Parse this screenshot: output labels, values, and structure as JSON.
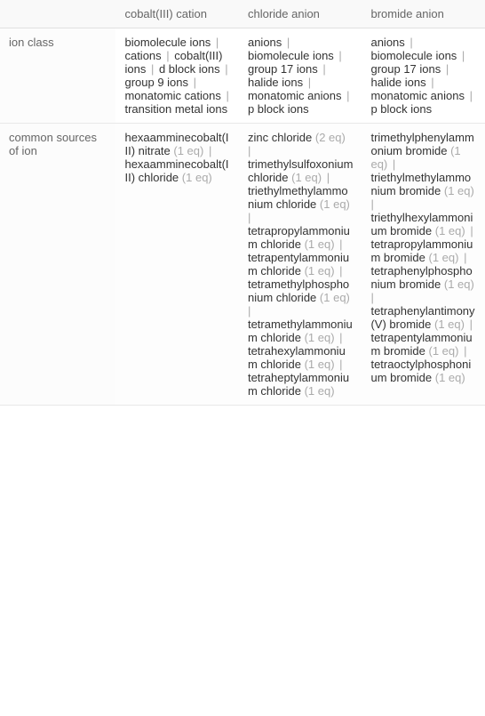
{
  "columns": [
    "",
    "cobalt(III) cation",
    "chloride anion",
    "bromide anion"
  ],
  "rows": [
    {
      "label": "ion class",
      "cells": [
        [
          {
            "t": "biomolecule ions"
          },
          {
            "t": "cations"
          },
          {
            "t": "cobalt(III) ions"
          },
          {
            "t": "d block ions"
          },
          {
            "t": "group 9 ions"
          },
          {
            "t": "monatomic cations"
          },
          {
            "t": "transition metal ions"
          }
        ],
        [
          {
            "t": "anions"
          },
          {
            "t": "biomolecule ions"
          },
          {
            "t": "group 17 ions"
          },
          {
            "t": "halide ions"
          },
          {
            "t": "monatomic anions"
          },
          {
            "t": "p block ions"
          }
        ],
        [
          {
            "t": "anions"
          },
          {
            "t": "biomolecule ions"
          },
          {
            "t": "group 17 ions"
          },
          {
            "t": "halide ions"
          },
          {
            "t": "monatomic anions"
          },
          {
            "t": "p block ions"
          }
        ]
      ]
    },
    {
      "label": "common sources of ion",
      "cells": [
        [
          {
            "t": "hexaamminecobalt(III) nitrate",
            "q": "(1 eq)"
          },
          {
            "t": "hexaamminecobalt(III) chloride",
            "q": "(1 eq)"
          }
        ],
        [
          {
            "t": "zinc chloride",
            "q": "(2 eq)"
          },
          {
            "t": "trimethylsulfoxonium chloride",
            "q": "(1 eq)"
          },
          {
            "t": "triethylmethylammonium chloride",
            "q": "(1 eq)"
          },
          {
            "t": "tetrapropylammonium chloride",
            "q": "(1 eq)"
          },
          {
            "t": "tetrapentylammonium chloride",
            "q": "(1 eq)"
          },
          {
            "t": "tetramethylphosphonium chloride",
            "q": "(1 eq)"
          },
          {
            "t": "tetramethylammonium chloride",
            "q": "(1 eq)"
          },
          {
            "t": "tetrahexylammonium chloride",
            "q": "(1 eq)"
          },
          {
            "t": "tetraheptylammonium chloride",
            "q": "(1 eq)"
          }
        ],
        [
          {
            "t": "trimethylphenylammonium bromide",
            "q": "(1 eq)"
          },
          {
            "t": "triethylmethylammonium bromide",
            "q": "(1 eq)"
          },
          {
            "t": "triethylhexylammonium bromide",
            "q": "(1 eq)"
          },
          {
            "t": "tetrapropylammonium bromide",
            "q": "(1 eq)"
          },
          {
            "t": "tetraphenylphosphonium bromide",
            "q": "(1 eq)"
          },
          {
            "t": "tetraphenylantimony(V) bromide",
            "q": "(1 eq)"
          },
          {
            "t": "tetrapentylammonium bromide",
            "q": "(1 eq)"
          },
          {
            "t": "tetraoctylphosphonium bromide",
            "q": "(1 eq)"
          }
        ]
      ]
    }
  ],
  "colors": {
    "text": "#333333",
    "muted": "#aaaaaa",
    "header_text": "#666666",
    "border": "#e8e8e8",
    "header_bg": "#f9f9f9"
  }
}
